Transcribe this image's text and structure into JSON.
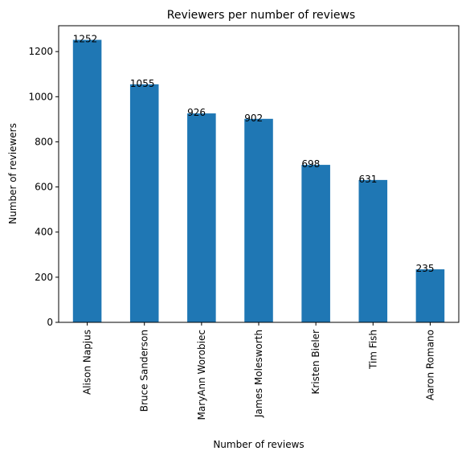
{
  "chart_data": {
    "type": "bar",
    "title": "Reviewers per number of reviews",
    "xlabel": "Number of reviews",
    "ylabel": "Number of reviewers",
    "categories": [
      "Alison Napjus",
      "Bruce Sanderson",
      "MaryAnn Worobiec",
      "James Molesworth",
      "Kristen Bieler",
      "Tim Fish",
      "Aaron Romano"
    ],
    "values": [
      1252,
      1055,
      926,
      902,
      698,
      631,
      235
    ],
    "ylim": [
      0,
      1314.6
    ],
    "yticks": [
      0,
      200,
      400,
      600,
      800,
      1000,
      1200
    ],
    "bar_color": "#1f77b4",
    "grid": false,
    "legend": "none"
  }
}
